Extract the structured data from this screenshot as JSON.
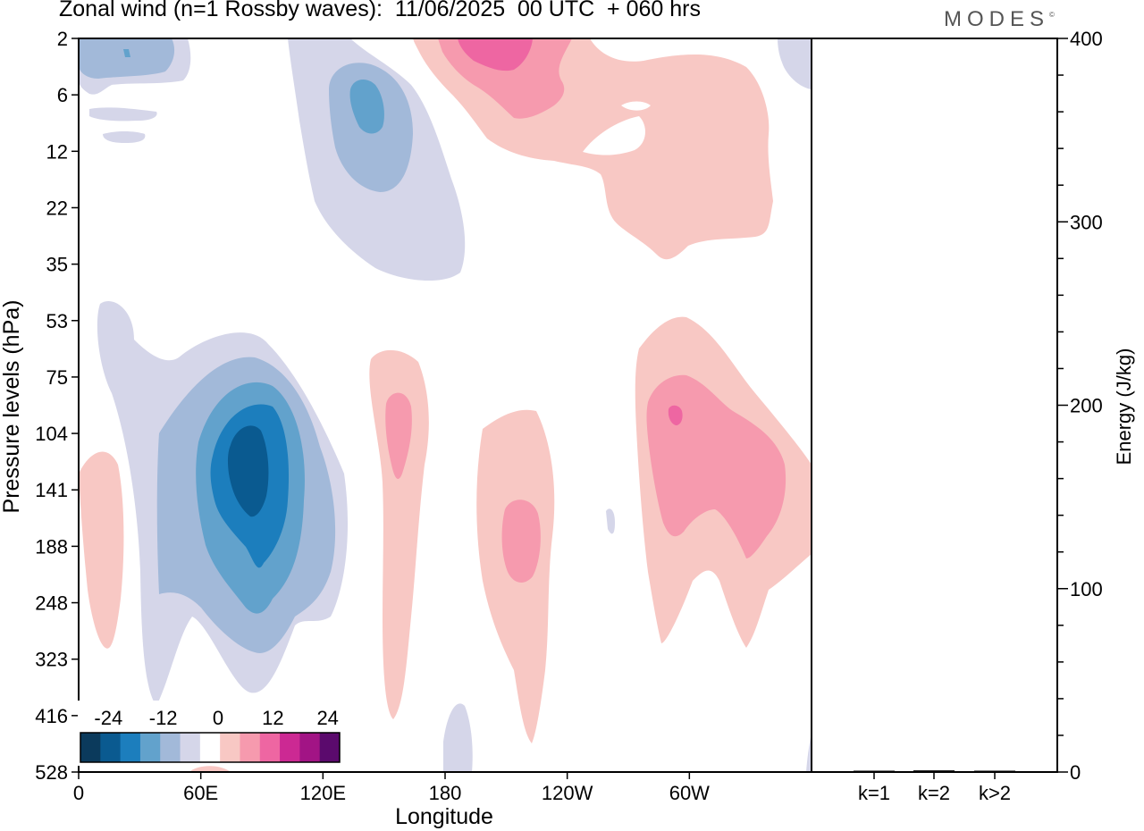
{
  "title": "Zonal wind (n=1 Rossby waves):  11/06/2025  00 UTC  + 060 hrs",
  "brand": "MODES",
  "brand_mark": "©",
  "chart_data": [
    {
      "type": "heatmap",
      "xlabel": "Longitude",
      "ylabel": "Pressure levels (hPa)",
      "x_ticks": [
        "0",
        "60E",
        "120E",
        "180",
        "120W",
        "60W"
      ],
      "x_tick_values": [
        0,
        60,
        120,
        180,
        240,
        300
      ],
      "xlim": [
        0,
        360
      ],
      "y_ticks": [
        "2",
        "6",
        "12",
        "22",
        "35",
        "53",
        "75",
        "104",
        "141",
        "188",
        "248",
        "323",
        "416",
        "528"
      ],
      "y_axis_reversed": true,
      "grid": false,
      "colorbar": {
        "ticks": [
          "-24",
          "-12",
          "0",
          "12",
          "24"
        ],
        "colors": [
          "#0b3a5c",
          "#0a5a90",
          "#1c7ebd",
          "#62a2cc",
          "#a2b9d9",
          "#d5d6e9",
          "#ffffff",
          "#f8c8c4",
          "#f69aae",
          "#ee66a2",
          "#cc2993",
          "#a21485",
          "#5b0a6d"
        ]
      },
      "features": [
        {
          "center_lon": 85,
          "center_level": "141",
          "peak": -24,
          "sign": "negative"
        },
        {
          "center_lon": 146,
          "center_level": "6",
          "peak": -12,
          "sign": "negative"
        },
        {
          "center_lon": 25,
          "center_level": "2",
          "peak": -6,
          "sign": "negative"
        },
        {
          "center_lon": 207,
          "center_level": "2",
          "peak": 12,
          "sign": "positive"
        },
        {
          "center_lon": 306,
          "center_level": "104",
          "peak": 18,
          "sign": "positive"
        },
        {
          "center_lon": 220,
          "center_level": "188",
          "peak": 6,
          "sign": "positive"
        },
        {
          "center_lon": 151,
          "center_level": "104",
          "peak": 6,
          "sign": "positive"
        },
        {
          "center_lon": 10,
          "center_level": "188",
          "peak": 3,
          "sign": "positive"
        }
      ]
    },
    {
      "type": "bar",
      "categories": [
        "k=1",
        "k=2",
        "k>2"
      ],
      "values": [
        0.6,
        0.9,
        0.7
      ],
      "ylabel": "Energy (J/kg)",
      "ylim": [
        0,
        400
      ],
      "y_ticks": [
        "0",
        "100",
        "200",
        "300",
        "400"
      ],
      "grid": false
    }
  ]
}
